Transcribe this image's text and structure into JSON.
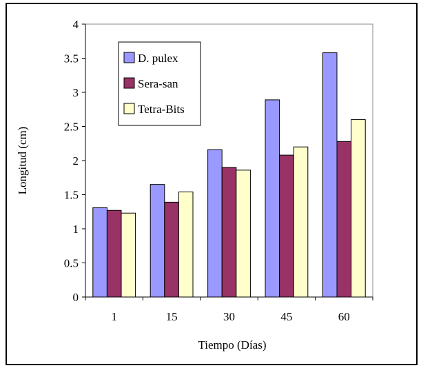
{
  "chart_data": {
    "type": "bar",
    "categories": [
      "1",
      "15",
      "30",
      "45",
      "60"
    ],
    "series": [
      {
        "name": "D. pulex",
        "values": [
          1.31,
          1.65,
          2.16,
          2.89,
          3.58
        ],
        "color": "#9999ff"
      },
      {
        "name": "Sera-san",
        "values": [
          1.27,
          1.39,
          1.9,
          2.08,
          2.28
        ],
        "color": "#993366"
      },
      {
        "name": "Tetra-Bits",
        "values": [
          1.23,
          1.54,
          1.86,
          2.2,
          2.6
        ],
        "color": "#ffffcc"
      }
    ],
    "title": "",
    "xlabel": "Tiempo (Días)",
    "ylabel": "Longitud (cm)",
    "ylim": [
      0,
      4
    ],
    "yticks": [
      "0",
      "0.5",
      "1",
      "1.5",
      "2",
      "2.5",
      "3",
      "3.5",
      "4"
    ],
    "grid": false,
    "legend_position": "top-left"
  }
}
